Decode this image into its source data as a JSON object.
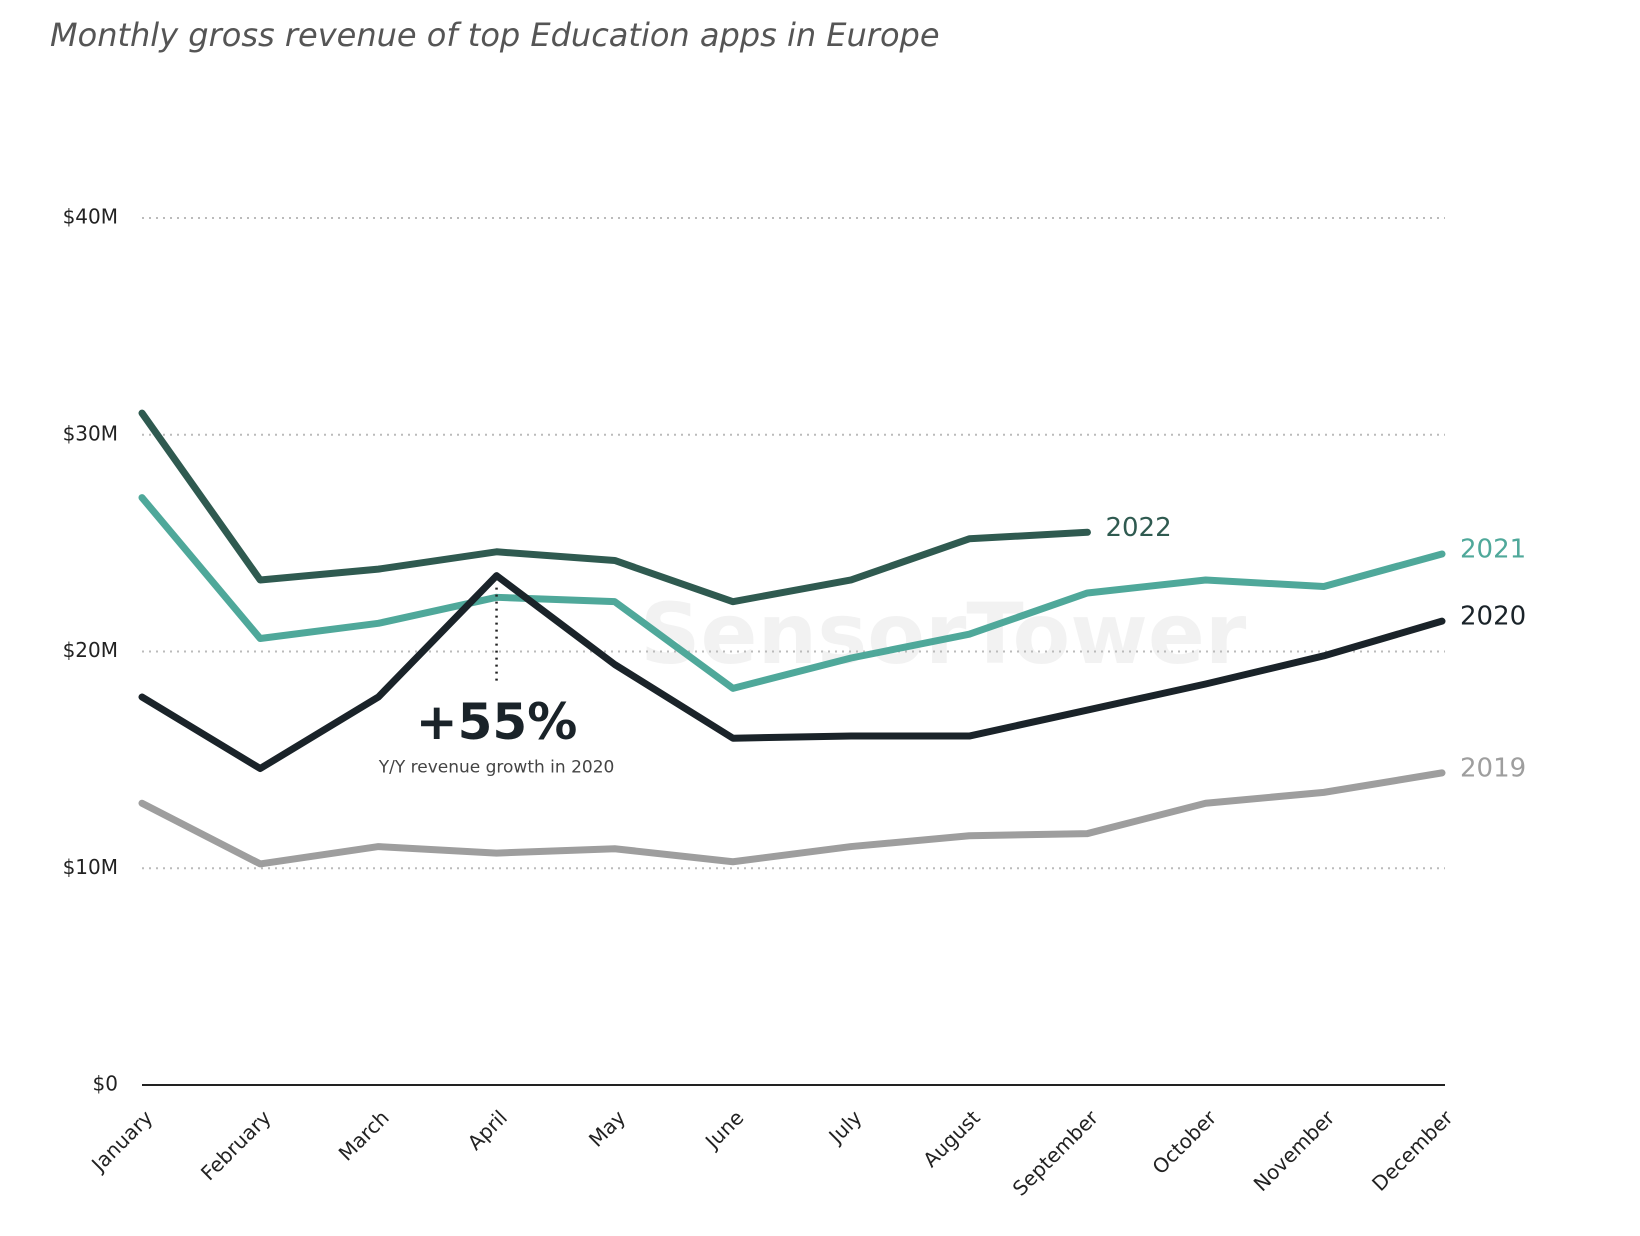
{
  "chart_data": {
    "type": "line",
    "subtitle": "Monthly gross revenue of top Education apps in Europe",
    "categories": [
      "January",
      "February",
      "March",
      "April",
      "May",
      "June",
      "July",
      "August",
      "September",
      "October",
      "November",
      "December"
    ],
    "series": [
      {
        "name": "2022",
        "color": "#2f5a50",
        "values": [
          31.0,
          23.3,
          23.8,
          24.6,
          24.2,
          22.3,
          23.3,
          25.2,
          25.5,
          null,
          null,
          null
        ]
      },
      {
        "name": "2021",
        "color": "#4fa89a",
        "values": [
          27.1,
          20.6,
          21.3,
          22.5,
          22.3,
          18.3,
          19.7,
          20.8,
          22.7,
          23.3,
          23.0,
          24.5
        ]
      },
      {
        "name": "2020",
        "color": "#1a2329",
        "values": [
          17.9,
          14.6,
          17.9,
          23.5,
          19.4,
          16.0,
          16.1,
          16.1,
          17.3,
          18.5,
          19.8,
          21.4
        ]
      },
      {
        "name": "2019",
        "color": "#9e9e9e",
        "values": [
          13.0,
          10.2,
          11.0,
          10.7,
          10.9,
          10.3,
          11.0,
          11.5,
          11.6,
          13.0,
          13.5,
          14.4
        ]
      }
    ],
    "ylim": [
      0,
      40
    ],
    "yticks": [
      {
        "value": 0,
        "label": "$0"
      },
      {
        "value": 10,
        "label": "$10M"
      },
      {
        "value": 20,
        "label": "$20M"
      },
      {
        "value": 30,
        "label": "$30M"
      },
      {
        "value": 40,
        "label": "$40M"
      }
    ],
    "grid": true,
    "annotation": {
      "headline": "+55%",
      "text": "Y/Y revenue growth in 2020"
    },
    "watermark": "SensorTower"
  }
}
